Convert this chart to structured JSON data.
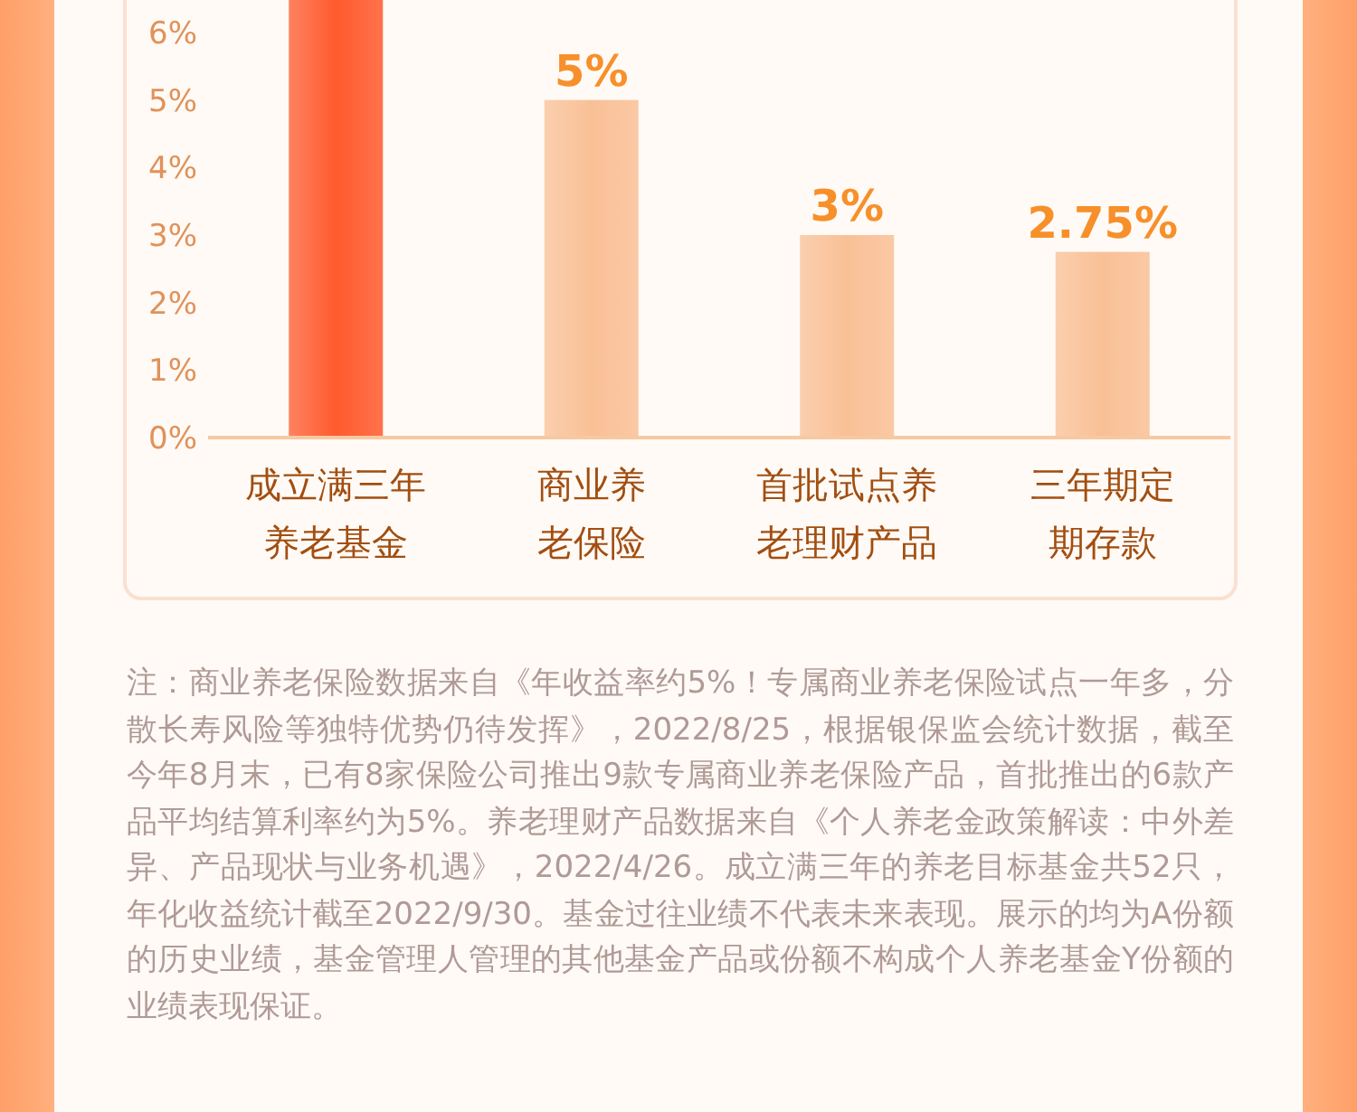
{
  "chart_data": {
    "type": "bar",
    "categories": [
      "成立满三年养老基金",
      "商业养老保险",
      "首批试点养老理财产品",
      "三年期定期存款"
    ],
    "values": [
      6.5,
      5,
      3,
      2.75
    ],
    "colors": [
      "#ff5a2e",
      "#f9c096",
      "#f9c096",
      "#f9c096"
    ],
    "value_labels": [
      null,
      "5%",
      "3%",
      "2.75%"
    ],
    "ylim": [
      0,
      6.5
    ],
    "yticks": [
      {
        "value": 0,
        "label": "0%"
      },
      {
        "value": 1,
        "label": "1%"
      },
      {
        "value": 2,
        "label": "2%"
      },
      {
        "value": 3,
        "label": "3%"
      },
      {
        "value": 4,
        "label": "4%"
      },
      {
        "value": 5,
        "label": "5%"
      },
      {
        "value": 6,
        "label": "6%"
      }
    ],
    "grid": false,
    "annotations": [
      "注：商业养老保险数据来自《年收益率约5%！专属商业养老保险试点一年多，分散长寿风险等独特优势仍待发挥》，2022/8/25，根据银保监会统计数据，截至今年8月末，已有8家保险公司推出9款专属商业养老保险产品，首批推出的6款产品平均结算利率约为5%。养老理财产品数据来自《个人养老金政策解读：中外差异、产品现状与业务机遇》，2022/4/26。成立满三年的养老目标基金共52只，年化收益统计截至2022/9/30。基金过往业绩不代表未来表现。展示的均为A份额的历史业绩，基金管理人管理的其他基金产品或份额不构成个人养老基金Y份额的业绩表现保证。"
    ]
  }
}
